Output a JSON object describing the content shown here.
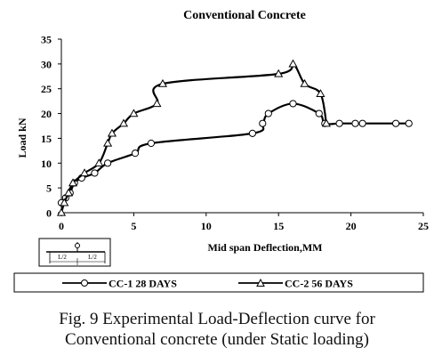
{
  "chart_data": {
    "type": "line",
    "title": "Conventional  Concrete",
    "xlabel": "Mid span Deflection,MM",
    "ylabel": "Load kN",
    "xlim": [
      0,
      25
    ],
    "ylim": [
      0,
      35
    ],
    "x_ticks": [
      0,
      5,
      10,
      15,
      20,
      25
    ],
    "y_ticks": [
      0,
      5,
      10,
      15,
      20,
      25,
      30,
      35
    ],
    "grid": false,
    "legend_position": "bottom",
    "series": [
      {
        "name": "CC-1 28 DAYS",
        "marker": "circle",
        "color": "#000000",
        "x": [
          0,
          0.3,
          0.6,
          0.9,
          1.4,
          2.3,
          3.2,
          5.1,
          6.2,
          13.2,
          13.9,
          14.3,
          16.0,
          17.8,
          18.2,
          19.2,
          20.3,
          20.8,
          23.1,
          24.0
        ],
        "y": [
          2,
          3,
          4,
          6,
          7,
          8,
          10,
          12,
          14,
          16,
          18,
          20,
          22,
          20,
          18,
          18,
          18,
          18,
          18,
          18
        ]
      },
      {
        "name": "CC-2 56 DAYS",
        "marker": "triangle",
        "color": "#000000",
        "x": [
          0,
          0.2,
          0.5,
          0.8,
          1.6,
          2.6,
          3.2,
          3.5,
          4.3,
          5.0,
          6.6,
          7.0,
          15.0,
          16.0,
          16.8,
          17.9,
          18.3
        ],
        "y": [
          0,
          2,
          4,
          6,
          8,
          10,
          14,
          16,
          18,
          20,
          22,
          26,
          28,
          30,
          26,
          24,
          18
        ]
      }
    ],
    "inset_labels": [
      "L/2",
      "L/2"
    ]
  },
  "caption": {
    "line1": "Fig. 9 Experimental Load-Deflection curve for",
    "line2": "Conventional concrete (under Static loading)"
  }
}
